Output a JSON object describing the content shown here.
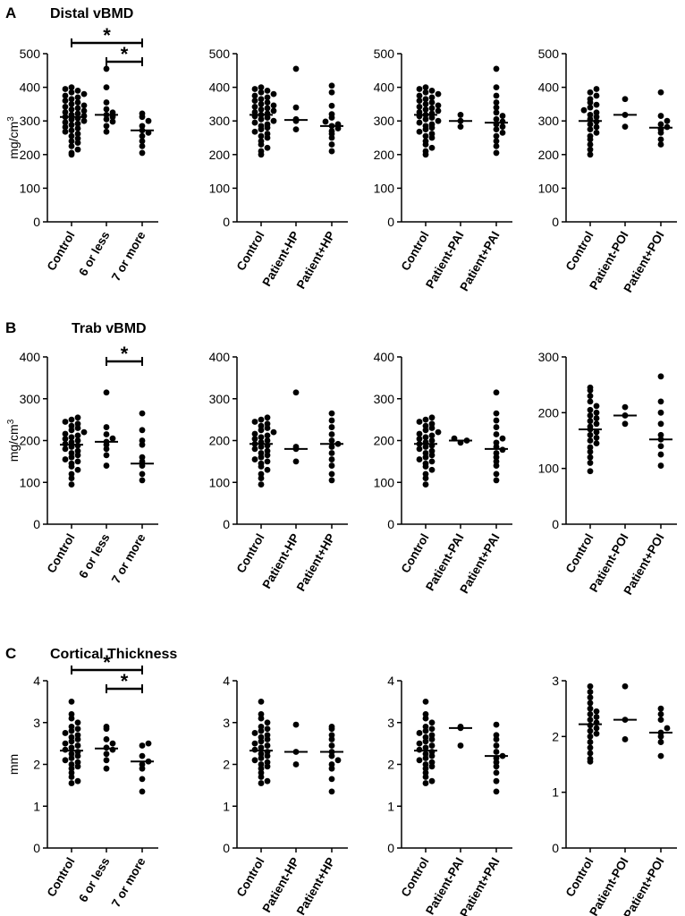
{
  "figure": {
    "rows": [
      {
        "letter": "A",
        "title": "Distal vBMD",
        "unit": "mg/cm3"
      },
      {
        "letter": "B",
        "title": "Trab vBMD",
        "unit": "mg/cm3"
      },
      {
        "letter": "C",
        "title": "Cortical Thickness",
        "unit": "mm"
      }
    ]
  },
  "chart_data": [
    {
      "type": "scatter",
      "row": 0,
      "col": 0,
      "title": "Distal vBMD",
      "ylabel": "mg/cm3",
      "ylim": [
        0,
        500
      ],
      "yticks": [
        0,
        100,
        200,
        300,
        400,
        500
      ],
      "categories": [
        "Control",
        "6 or less",
        "7 or more"
      ],
      "medians": [
        312,
        318,
        272
      ],
      "points": [
        [
          200,
          205,
          215,
          225,
          235,
          240,
          248,
          255,
          262,
          268,
          272,
          278,
          282,
          288,
          292,
          296,
          300,
          304,
          308,
          312,
          315,
          318,
          322,
          326,
          330,
          334,
          338,
          342,
          346,
          350,
          355,
          360,
          365,
          370,
          375,
          380,
          385,
          390,
          395,
          400
        ],
        [
          268,
          285,
          298,
          305,
          312,
          318,
          325,
          335,
          355,
          400,
          455
        ],
        [
          205,
          225,
          240,
          255,
          265,
          272,
          285,
          300,
          312,
          322
        ]
      ],
      "sig": [
        {
          "from": 0,
          "to": 2,
          "label": "*"
        },
        {
          "from": 1,
          "to": 2,
          "label": "*"
        }
      ]
    },
    {
      "type": "scatter",
      "row": 0,
      "col": 1,
      "ylim": [
        0,
        500
      ],
      "yticks": [
        0,
        100,
        200,
        300,
        400,
        500
      ],
      "categories": [
        "Control",
        "Patient-HP",
        "Patient+HP"
      ],
      "medians": [
        318,
        303,
        285
      ],
      "points": [
        [
          200,
          210,
          220,
          230,
          240,
          250,
          255,
          262,
          268,
          275,
          280,
          285,
          290,
          295,
          300,
          305,
          310,
          314,
          318,
          322,
          326,
          330,
          334,
          338,
          342,
          346,
          350,
          355,
          360,
          365,
          370,
          375,
          380,
          385,
          390,
          395,
          400
        ],
        [
          275,
          300,
          305,
          340,
          455
        ],
        [
          210,
          230,
          250,
          262,
          270,
          278,
          285,
          290,
          298,
          310,
          320,
          345,
          385,
          405
        ]
      ],
      "sig": []
    },
    {
      "type": "scatter",
      "row": 0,
      "col": 2,
      "ylim": [
        0,
        500
      ],
      "yticks": [
        0,
        100,
        200,
        300,
        400,
        500
      ],
      "categories": [
        "Control",
        "Patient-PAI",
        "Patient+PAI"
      ],
      "medians": [
        318,
        300,
        295
      ],
      "points": [
        [
          200,
          210,
          220,
          230,
          240,
          250,
          255,
          262,
          268,
          275,
          280,
          285,
          290,
          295,
          300,
          305,
          310,
          314,
          318,
          322,
          326,
          330,
          334,
          338,
          342,
          346,
          350,
          355,
          360,
          365,
          370,
          375,
          380,
          385,
          390,
          395,
          400
        ],
        [
          283,
          300,
          318
        ],
        [
          205,
          225,
          240,
          255,
          265,
          275,
          283,
          290,
          298,
          305,
          315,
          325,
          340,
          355,
          375,
          400,
          455
        ]
      ],
      "sig": []
    },
    {
      "type": "scatter",
      "row": 0,
      "col": 3,
      "ylim": [
        0,
        500
      ],
      "yticks": [
        0,
        100,
        200,
        300,
        400,
        500
      ],
      "categories": [
        "Control",
        "Patient-POI",
        "Patient+POI"
      ],
      "medians": [
        300,
        318,
        280
      ],
      "points": [
        [
          200,
          215,
          230,
          245,
          255,
          265,
          275,
          282,
          290,
          298,
          305,
          312,
          318,
          325,
          332,
          340,
          348,
          355,
          365,
          375,
          385,
          395
        ],
        [
          283,
          318,
          365
        ],
        [
          230,
          245,
          265,
          275,
          282,
          290,
          300,
          315,
          385
        ]
      ],
      "sig": []
    },
    {
      "type": "scatter",
      "row": 1,
      "col": 0,
      "ylabel": "mg/cm3",
      "ylim": [
        0,
        400
      ],
      "yticks": [
        0,
        100,
        200,
        300,
        400
      ],
      "categories": [
        "Control",
        "6 or less",
        "7 or more"
      ],
      "medians": [
        190,
        197,
        145
      ],
      "points": [
        [
          95,
          110,
          120,
          130,
          138,
          145,
          150,
          155,
          160,
          165,
          170,
          175,
          180,
          185,
          188,
          192,
          196,
          200,
          204,
          208,
          212,
          216,
          220,
          225,
          230,
          235,
          240,
          245,
          250,
          255
        ],
        [
          140,
          165,
          180,
          190,
          197,
          205,
          215,
          232,
          315
        ],
        [
          105,
          120,
          140,
          150,
          160,
          190,
          200,
          225,
          265
        ]
      ],
      "sig": [
        {
          "from": 1,
          "to": 2,
          "label": "*"
        }
      ]
    },
    {
      "type": "scatter",
      "row": 1,
      "col": 1,
      "ylim": [
        0,
        400
      ],
      "yticks": [
        0,
        100,
        200,
        300,
        400
      ],
      "categories": [
        "Control",
        "Patient-HP",
        "Patient+HP"
      ],
      "medians": [
        192,
        180,
        192
      ],
      "points": [
        [
          95,
          110,
          120,
          130,
          138,
          145,
          150,
          155,
          160,
          165,
          170,
          175,
          180,
          185,
          188,
          192,
          196,
          200,
          204,
          208,
          212,
          216,
          220,
          225,
          230,
          235,
          240,
          245,
          250,
          255
        ],
        [
          150,
          180,
          185,
          315
        ],
        [
          105,
          120,
          140,
          155,
          170,
          185,
          192,
          200,
          215,
          232,
          248,
          265
        ]
      ],
      "sig": []
    },
    {
      "type": "scatter",
      "row": 1,
      "col": 2,
      "ylim": [
        0,
        400
      ],
      "yticks": [
        0,
        100,
        200,
        300,
        400
      ],
      "categories": [
        "Control",
        "Patient-PAI",
        "Patient+PAI"
      ],
      "medians": [
        192,
        200,
        180
      ],
      "points": [
        [
          95,
          110,
          120,
          130,
          138,
          145,
          150,
          155,
          160,
          165,
          170,
          175,
          180,
          185,
          188,
          192,
          196,
          200,
          204,
          208,
          212,
          216,
          220,
          225,
          230,
          235,
          240,
          245,
          250,
          255
        ],
        [
          195,
          200,
          205
        ],
        [
          105,
          120,
          140,
          150,
          160,
          170,
          178,
          185,
          195,
          205,
          215,
          232,
          248,
          265,
          315
        ]
      ],
      "sig": []
    },
    {
      "type": "scatter",
      "row": 1,
      "col": 3,
      "ylim": [
        0,
        300
      ],
      "yticks": [
        0,
        100,
        200,
        300
      ],
      "categories": [
        "Control",
        "Patient-POI",
        "Patient+POI"
      ],
      "medians": [
        170,
        195,
        152
      ],
      "points": [
        [
          95,
          110,
          120,
          130,
          138,
          145,
          150,
          155,
          160,
          165,
          170,
          175,
          180,
          185,
          190,
          195,
          200,
          205,
          212,
          220,
          230,
          240,
          245
        ],
        [
          180,
          195,
          210
        ],
        [
          105,
          125,
          140,
          152,
          160,
          180,
          200,
          220,
          265
        ]
      ],
      "sig": []
    },
    {
      "type": "scatter",
      "row": 2,
      "col": 0,
      "ylabel": "mm",
      "ylim": [
        0,
        4
      ],
      "yticks": [
        0,
        1,
        2,
        3,
        4
      ],
      "categories": [
        "Control",
        "6 or less",
        "7 or more"
      ],
      "medians": [
        2.33,
        2.38,
        2.07
      ],
      "points": [
        [
          1.55,
          1.6,
          1.7,
          1.8,
          1.9,
          1.95,
          2.0,
          2.05,
          2.1,
          2.15,
          2.2,
          2.25,
          2.3,
          2.35,
          2.4,
          2.45,
          2.5,
          2.55,
          2.6,
          2.65,
          2.7,
          2.75,
          2.8,
          2.85,
          2.9,
          3.0,
          3.1,
          3.2,
          3.5
        ],
        [
          1.9,
          2.1,
          2.25,
          2.35,
          2.4,
          2.5,
          2.6,
          2.85,
          2.9
        ],
        [
          1.35,
          1.65,
          1.9,
          2.0,
          2.07,
          2.2,
          2.45,
          2.5
        ]
      ],
      "sig": [
        {
          "from": 0,
          "to": 2,
          "label": "*"
        },
        {
          "from": 1,
          "to": 2,
          "label": "*"
        }
      ]
    },
    {
      "type": "scatter",
      "row": 2,
      "col": 1,
      "ylim": [
        0,
        4
      ],
      "yticks": [
        0,
        1,
        2,
        3,
        4
      ],
      "categories": [
        "Control",
        "Patient-HP",
        "Patient+HP"
      ],
      "medians": [
        2.33,
        2.3,
        2.3
      ],
      "points": [
        [
          1.55,
          1.6,
          1.7,
          1.8,
          1.9,
          1.95,
          2.0,
          2.05,
          2.1,
          2.15,
          2.2,
          2.25,
          2.3,
          2.35,
          2.4,
          2.45,
          2.5,
          2.55,
          2.6,
          2.65,
          2.7,
          2.75,
          2.8,
          2.85,
          2.9,
          3.0,
          3.1,
          3.2,
          3.5
        ],
        [
          2.0,
          2.3,
          2.95
        ],
        [
          1.35,
          1.65,
          1.9,
          2.0,
          2.1,
          2.2,
          2.3,
          2.45,
          2.6,
          2.7,
          2.85,
          2.9
        ]
      ],
      "sig": []
    },
    {
      "type": "scatter",
      "row": 2,
      "col": 2,
      "ylim": [
        0,
        4
      ],
      "yticks": [
        0,
        1,
        2,
        3,
        4
      ],
      "categories": [
        "Control",
        "Patient-PAI",
        "Patient+PAI"
      ],
      "medians": [
        2.33,
        2.87,
        2.2
      ],
      "points": [
        [
          1.55,
          1.6,
          1.7,
          1.8,
          1.9,
          1.95,
          2.0,
          2.05,
          2.1,
          2.15,
          2.2,
          2.25,
          2.3,
          2.35,
          2.4,
          2.45,
          2.5,
          2.55,
          2.6,
          2.65,
          2.7,
          2.75,
          2.8,
          2.85,
          2.9,
          3.0,
          3.1,
          3.2,
          3.5
        ],
        [
          2.45,
          2.87,
          2.9
        ],
        [
          1.35,
          1.6,
          1.8,
          1.95,
          2.05,
          2.15,
          2.2,
          2.3,
          2.45,
          2.6,
          2.7,
          2.95
        ]
      ],
      "sig": []
    },
    {
      "type": "scatter",
      "row": 2,
      "col": 3,
      "ylim": [
        0,
        3
      ],
      "yticks": [
        0,
        1,
        2,
        3
      ],
      "categories": [
        "Control",
        "Patient-POI",
        "Patient+POI"
      ],
      "medians": [
        2.22,
        2.3,
        2.07
      ],
      "points": [
        [
          1.55,
          1.6,
          1.7,
          1.8,
          1.9,
          2.0,
          2.05,
          2.1,
          2.15,
          2.2,
          2.25,
          2.3,
          2.35,
          2.4,
          2.45,
          2.5,
          2.6,
          2.7,
          2.8,
          2.9
        ],
        [
          1.95,
          2.3,
          2.9
        ],
        [
          1.65,
          1.9,
          2.0,
          2.07,
          2.15,
          2.3,
          2.4,
          2.5
        ]
      ],
      "sig": []
    }
  ]
}
